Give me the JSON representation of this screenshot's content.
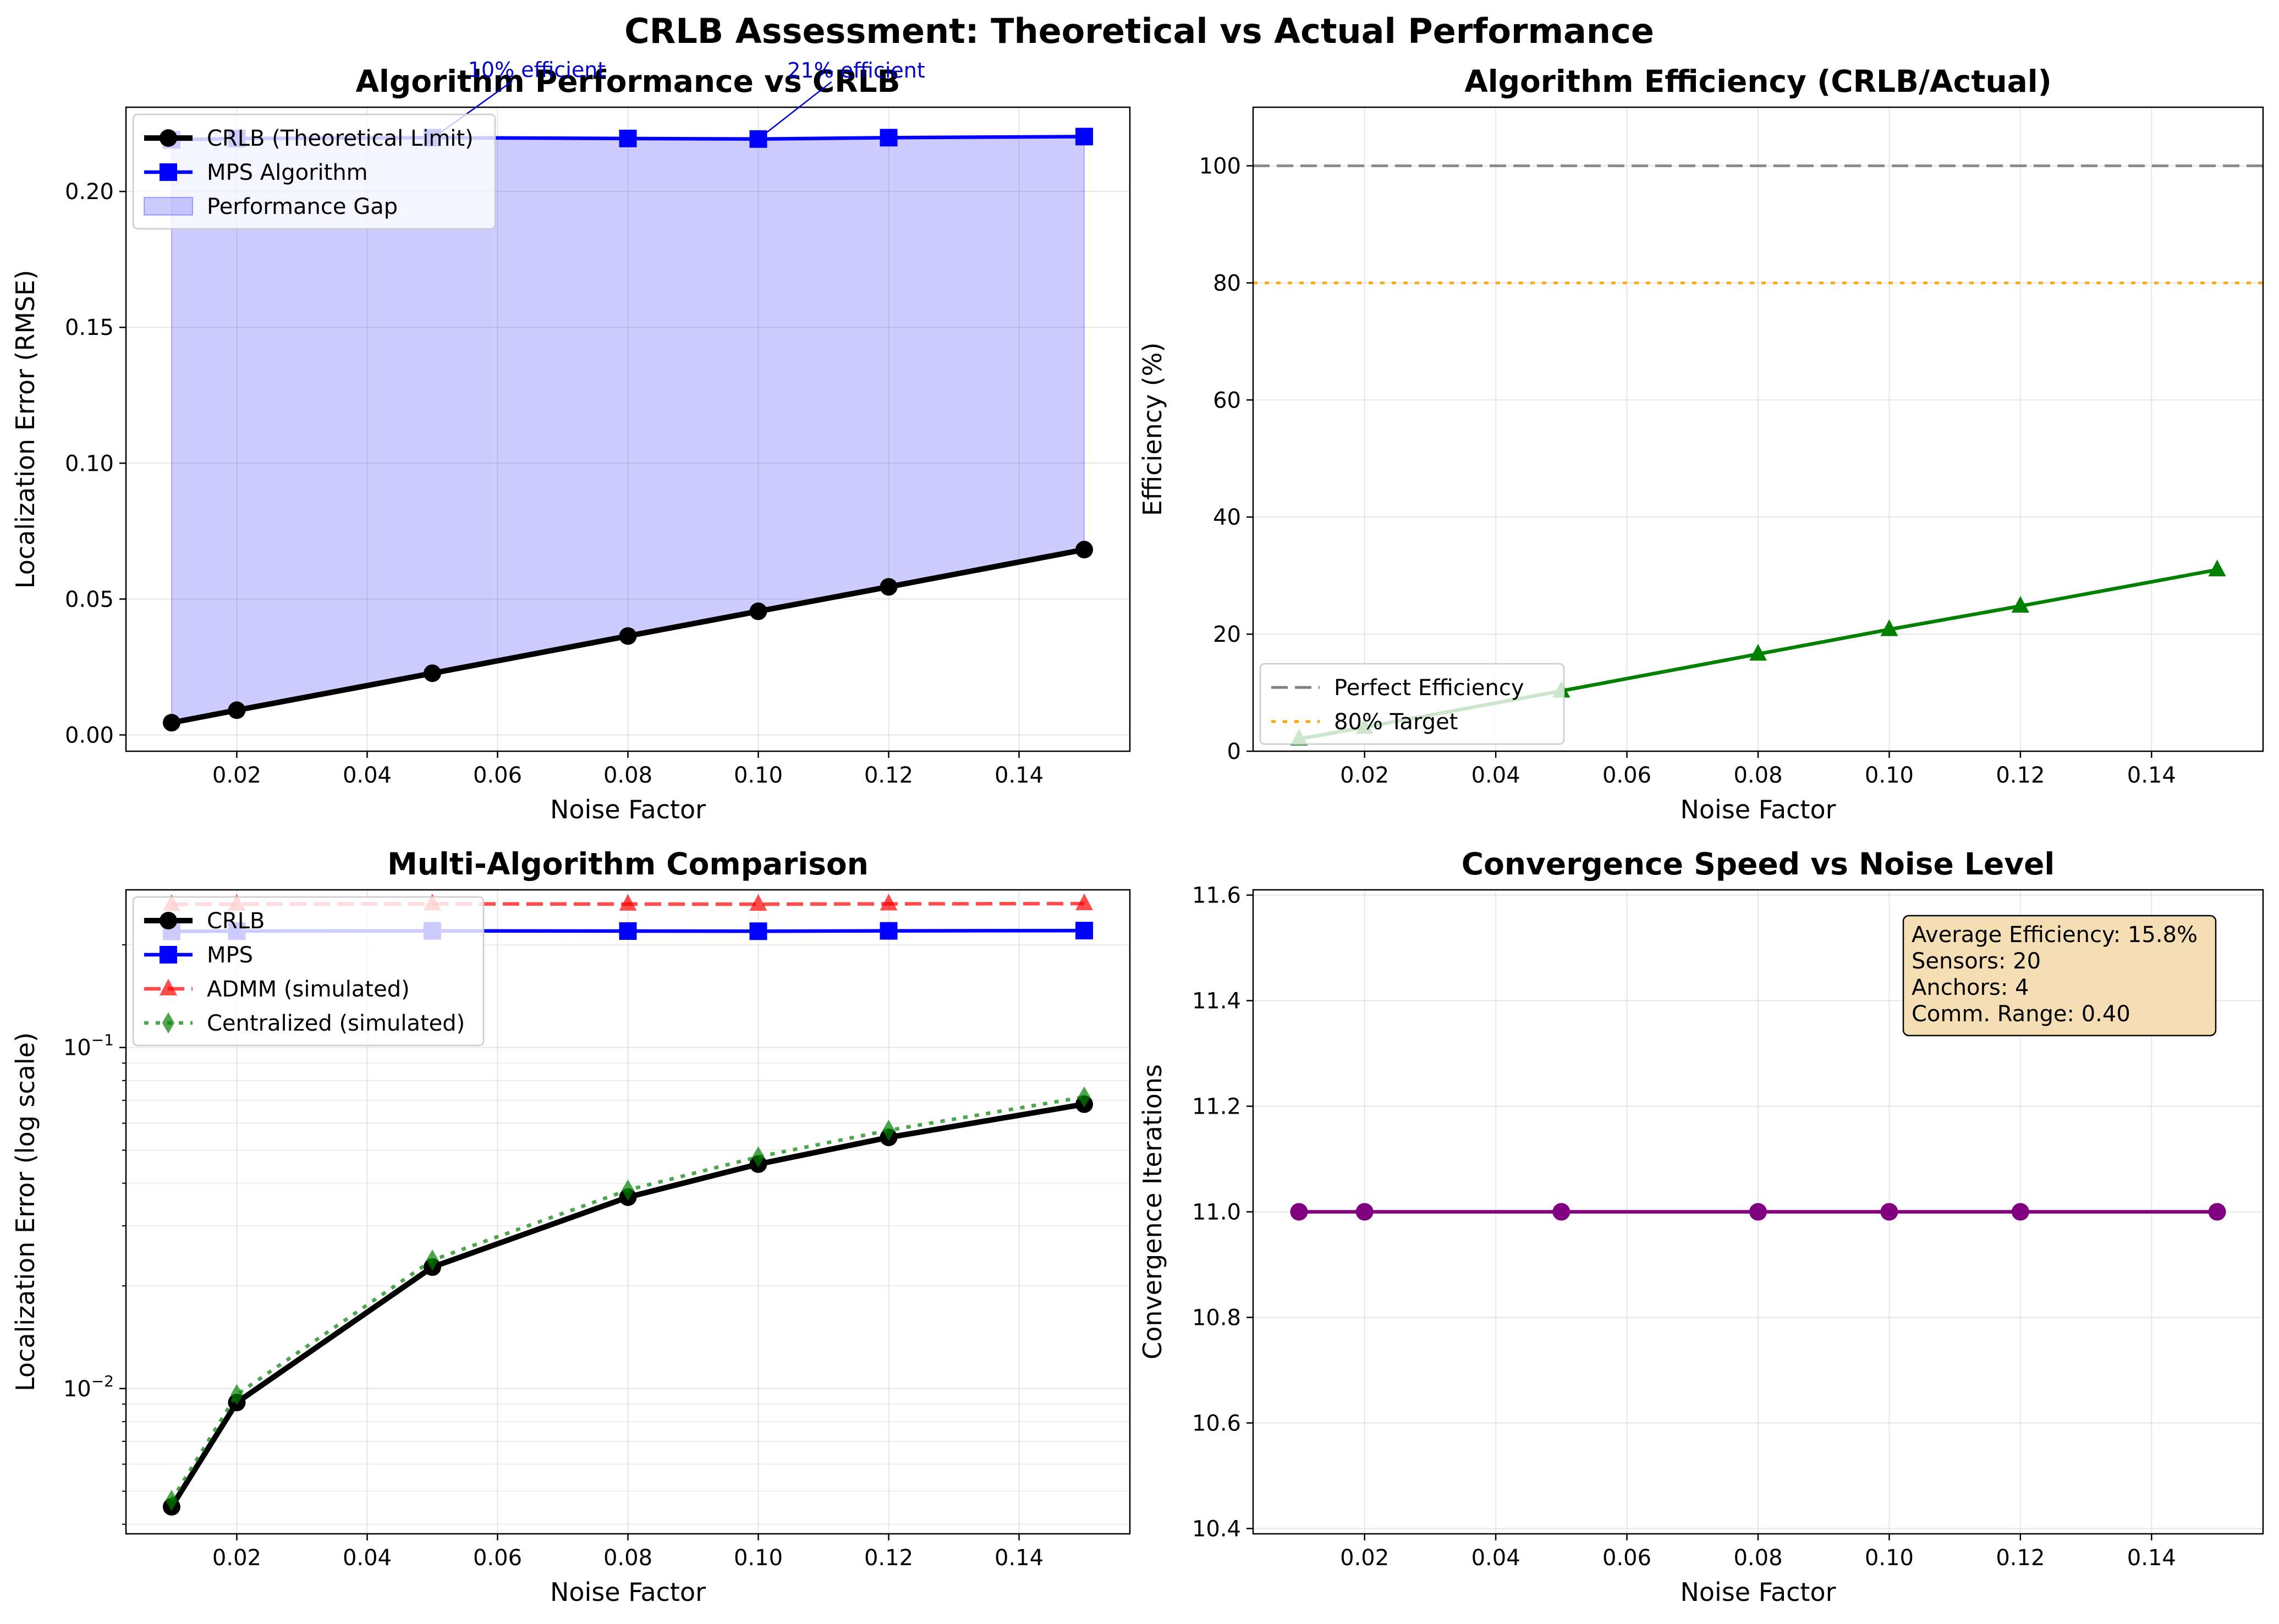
{
  "suptitle": "CRLB Assessment: Theoretical vs Actual Performance",
  "chart_data": [
    {
      "type": "line",
      "title": "Algorithm Performance vs CRLB",
      "xlabel": "Noise Factor",
      "ylabel": "Localization Error (RMSE)",
      "xlim": [
        0.003,
        0.157
      ],
      "ylim": [
        -0.006,
        0.231
      ],
      "xticks": [
        "0.02",
        "0.04",
        "0.06",
        "0.08",
        "0.10",
        "0.12",
        "0.14"
      ],
      "yticks": [
        "0.00",
        "0.05",
        "0.10",
        "0.15",
        "0.20"
      ],
      "grid": true,
      "legend_position": "upper-left",
      "x": [
        0.01,
        0.02,
        0.05,
        0.08,
        0.1,
        0.12,
        0.15
      ],
      "series": [
        {
          "name": "CRLB (Theoretical Limit)",
          "color": "#000000",
          "marker": "circle",
          "style": "solid",
          "values": [
            0.0045,
            0.0091,
            0.0227,
            0.0364,
            0.0455,
            0.0545,
            0.0682
          ]
        },
        {
          "name": "MPS Algorithm",
          "color": "#0000ff",
          "marker": "square",
          "style": "solid",
          "values": [
            0.219,
            0.2195,
            0.2198,
            0.2195,
            0.2193,
            0.2198,
            0.2202
          ]
        }
      ],
      "fill": {
        "name": "Performance Gap",
        "color": "#0000ff",
        "opacity": 0.2
      },
      "annotations": [
        {
          "text": "10% efficient",
          "x": 0.05,
          "y": 0.2195,
          "color": "#0000cc"
        },
        {
          "text": "21% efficient",
          "x": 0.1,
          "y": 0.2193,
          "color": "#0000cc"
        }
      ]
    },
    {
      "type": "line",
      "title": "Algorithm Efficiency (CRLB/Actual)",
      "xlabel": "Noise Factor",
      "ylabel": "Efficiency (%)",
      "xlim": [
        0.003,
        0.157
      ],
      "ylim": [
        0,
        110
      ],
      "xticks": [
        "0.02",
        "0.04",
        "0.06",
        "0.08",
        "0.10",
        "0.12",
        "0.14"
      ],
      "yticks": [
        "0",
        "20",
        "40",
        "60",
        "80",
        "100"
      ],
      "grid": true,
      "legend_position": "lower-left",
      "x": [
        0.01,
        0.02,
        0.05,
        0.08,
        0.1,
        0.12,
        0.15
      ],
      "series": [
        {
          "name": "",
          "color": "#008000",
          "marker": "triangle",
          "style": "solid",
          "values": [
            2.1,
            4.1,
            10.3,
            16.6,
            20.8,
            24.8,
            31.0
          ]
        }
      ],
      "reference_lines": [
        {
          "name": "Perfect Efficiency",
          "value": 100,
          "color": "#808080",
          "style": "dashed"
        },
        {
          "name": "80% Target",
          "value": 80,
          "color": "#ffa500",
          "style": "dotted"
        }
      ]
    },
    {
      "type": "line",
      "title": "Multi-Algorithm Comparison",
      "xlabel": "Noise Factor",
      "ylabel": "Localization Error (log scale)",
      "scale_y": "log",
      "xlim": [
        0.003,
        0.157
      ],
      "ylim": [
        0.00375,
        0.29
      ],
      "xticks": [
        "0.02",
        "0.04",
        "0.06",
        "0.08",
        "0.10",
        "0.12",
        "0.14"
      ],
      "yticks_major": [
        0.01,
        0.1
      ],
      "grid": true,
      "legend_position": "upper-left",
      "x": [
        0.01,
        0.02,
        0.05,
        0.08,
        0.1,
        0.12,
        0.15
      ],
      "series": [
        {
          "name": "CRLB",
          "color": "#000000",
          "marker": "circle",
          "style": "solid",
          "values": [
            0.0045,
            0.0091,
            0.0227,
            0.0364,
            0.0455,
            0.0545,
            0.0682
          ]
        },
        {
          "name": "MPS",
          "color": "#0000ff",
          "marker": "square",
          "style": "solid",
          "values": [
            0.219,
            0.2195,
            0.2198,
            0.2195,
            0.2193,
            0.2198,
            0.2202
          ]
        },
        {
          "name": "ADMM (simulated)",
          "color": "#ff0000",
          "marker": "triangle",
          "style": "dashed",
          "opacity": 0.7,
          "values": [
            0.2628,
            0.2634,
            0.2638,
            0.2634,
            0.2632,
            0.2638,
            0.2642
          ]
        },
        {
          "name": "Centralized (simulated)",
          "color": "#008000",
          "marker": "diamond",
          "style": "dotted",
          "opacity": 0.7,
          "values": [
            0.0047,
            0.0096,
            0.0238,
            0.0382,
            0.0478,
            0.0572,
            0.0716
          ]
        }
      ]
    },
    {
      "type": "line",
      "title": "Convergence Speed vs Noise Level",
      "xlabel": "Noise Factor",
      "ylabel": "Convergence Iterations",
      "xlim": [
        0.003,
        0.157
      ],
      "ylim": [
        10.39,
        11.61
      ],
      "xticks": [
        "0.02",
        "0.04",
        "0.06",
        "0.08",
        "0.10",
        "0.12",
        "0.14"
      ],
      "yticks": [
        "10.4",
        "10.6",
        "10.8",
        "11.0",
        "11.2",
        "11.4",
        "11.6"
      ],
      "grid": true,
      "x": [
        0.01,
        0.02,
        0.05,
        0.08,
        0.1,
        0.12,
        0.15
      ],
      "series": [
        {
          "name": "",
          "color": "#800080",
          "marker": "circle",
          "style": "solid",
          "values": [
            11,
            11,
            11,
            11,
            11,
            11,
            11
          ]
        }
      ],
      "info_box": [
        "Average Efficiency: 15.8%",
        "Sensors: 20",
        "Anchors: 4",
        "Comm. Range: 0.40"
      ]
    }
  ]
}
